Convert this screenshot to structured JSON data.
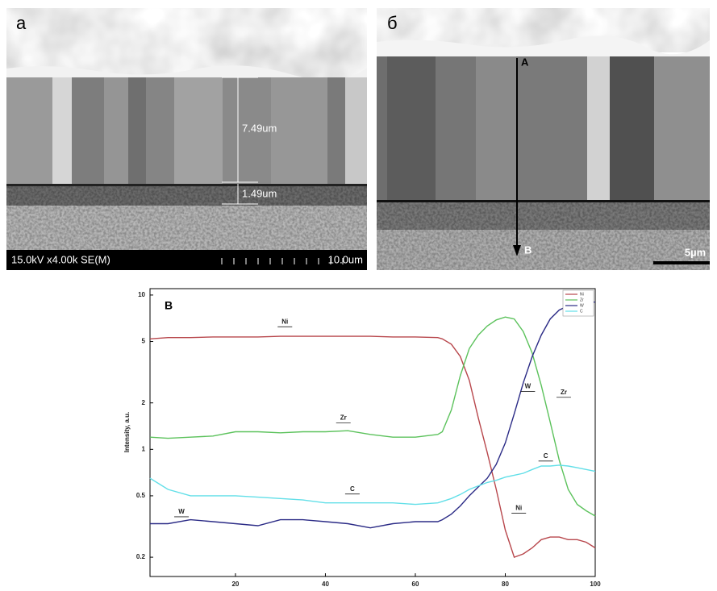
{
  "panel_a": {
    "label": "а",
    "info": "15.0kV x4.00k SE(M)",
    "scale": "10.0um",
    "measure_top": "7.49um",
    "measure_bottom": "1.49um"
  },
  "panel_b": {
    "label": "б",
    "point_a": "A",
    "point_b": "B",
    "scale": "5µm"
  },
  "chart_data": {
    "type": "line",
    "panel_label": "В",
    "y_label": "Intensity, a.u.",
    "log_y": true,
    "legend": "top-right",
    "x": [
      1,
      5,
      10,
      15,
      20,
      25,
      30,
      35,
      40,
      45,
      50,
      55,
      60,
      65,
      66,
      68,
      70,
      72,
      74,
      76,
      78,
      80,
      82,
      84,
      86,
      88,
      90,
      92,
      94,
      96,
      98,
      100
    ],
    "series": [
      {
        "name": "Ni",
        "color": "#b8474c",
        "values": [
          5.2,
          5.3,
          5.3,
          5.35,
          5.35,
          5.35,
          5.4,
          5.4,
          5.4,
          5.4,
          5.4,
          5.35,
          5.35,
          5.3,
          5.2,
          4.8,
          4.0,
          2.8,
          1.6,
          0.95,
          0.55,
          0.3,
          0.2,
          0.21,
          0.23,
          0.26,
          0.27,
          0.27,
          0.26,
          0.26,
          0.25,
          0.23
        ]
      },
      {
        "name": "Zr",
        "color": "#5cc25c",
        "values": [
          1.2,
          1.18,
          1.2,
          1.22,
          1.3,
          1.3,
          1.28,
          1.3,
          1.3,
          1.32,
          1.25,
          1.2,
          1.2,
          1.25,
          1.3,
          1.8,
          3.0,
          4.5,
          5.5,
          6.3,
          6.9,
          7.2,
          7.0,
          5.8,
          4.2,
          2.6,
          1.5,
          0.85,
          0.55,
          0.44,
          0.4,
          0.37
        ]
      },
      {
        "name": "W",
        "color": "#2b2b86",
        "values": [
          0.33,
          0.33,
          0.35,
          0.34,
          0.33,
          0.32,
          0.35,
          0.35,
          0.34,
          0.33,
          0.31,
          0.33,
          0.34,
          0.34,
          0.35,
          0.38,
          0.43,
          0.5,
          0.57,
          0.65,
          0.8,
          1.1,
          1.7,
          2.7,
          4.0,
          5.5,
          7.0,
          8.0,
          8.5,
          8.8,
          9.0,
          9.0
        ]
      },
      {
        "name": "C",
        "color": "#62dfe8",
        "values": [
          0.65,
          0.55,
          0.5,
          0.5,
          0.5,
          0.49,
          0.48,
          0.47,
          0.45,
          0.45,
          0.45,
          0.45,
          0.44,
          0.45,
          0.46,
          0.48,
          0.51,
          0.55,
          0.58,
          0.61,
          0.63,
          0.66,
          0.68,
          0.7,
          0.74,
          0.78,
          0.78,
          0.79,
          0.78,
          0.76,
          0.74,
          0.72
        ]
      }
    ],
    "annotations": [
      {
        "text": "Ni",
        "x": 31,
        "y": 6.3
      },
      {
        "text": "Zr",
        "x": 44,
        "y": 1.5
      },
      {
        "text": "W",
        "x": 8,
        "y": 0.37
      },
      {
        "text": "C",
        "x": 46,
        "y": 0.52
      },
      {
        "text": "W",
        "x": 85,
        "y": 2.4
      },
      {
        "text": "Zr",
        "x": 93,
        "y": 2.2
      },
      {
        "text": "C",
        "x": 89,
        "y": 0.85
      },
      {
        "text": "Ni",
        "x": 83,
        "y": 0.39
      }
    ],
    "xlim": [
      1,
      100
    ],
    "ylim": [
      0.15,
      11
    ],
    "xticks": [
      20,
      40,
      60,
      80,
      100
    ],
    "yticks": [
      0.2,
      0.5,
      1,
      2,
      5,
      10
    ]
  }
}
